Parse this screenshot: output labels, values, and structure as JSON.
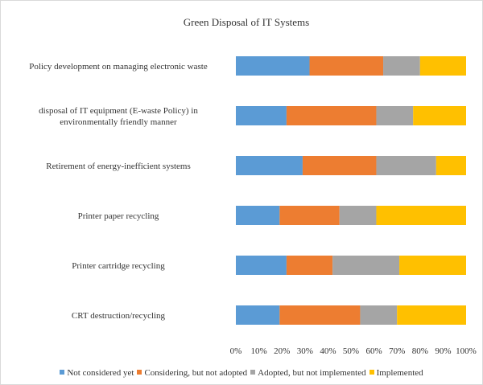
{
  "chart_data": {
    "type": "bar",
    "orientation": "horizontal",
    "stacked": "percent",
    "title": "Green Disposal of IT Systems",
    "categories": [
      "Policy development on managing electronic waste",
      "disposal of IT equipment (E-waste Policy) in environmentally friendly manner",
      "Retirement of energy-inefficient systems",
      "Printer paper recycling",
      "Printer cartridge recycling",
      "CRT destruction/recycling"
    ],
    "category_lines": [
      [
        "Policy development on managing electronic waste"
      ],
      [
        "disposal of IT equipment (E-waste Policy) in",
        "environmentally friendly manner"
      ],
      [
        "Retirement of energy-inefficient systems"
      ],
      [
        "Printer paper recycling"
      ],
      [
        "Printer cartridge recycling"
      ],
      [
        "CRT destruction/recycling"
      ]
    ],
    "series": [
      {
        "name": "Not considered yet",
        "color": "#5b9bd5",
        "values": [
          32,
          22,
          29,
          19,
          22,
          19
        ]
      },
      {
        "name": "Considering, but not adopted",
        "color": "#ed7d31",
        "values": [
          32,
          39,
          32,
          26,
          20,
          35
        ]
      },
      {
        "name": "Adopted, but not implemented",
        "color": "#a5a5a5",
        "values": [
          16,
          16,
          26,
          16,
          29,
          16
        ]
      },
      {
        "name": "Implemented",
        "color": "#ffc000",
        "values": [
          20,
          23,
          13,
          39,
          29,
          30
        ]
      }
    ],
    "xlim": [
      0,
      100
    ],
    "xticks": [
      "0%",
      "10%",
      "20%",
      "30%",
      "40%",
      "50%",
      "60%",
      "70%",
      "80%",
      "90%",
      "100%"
    ],
    "grid": false,
    "legend_position": "bottom"
  }
}
